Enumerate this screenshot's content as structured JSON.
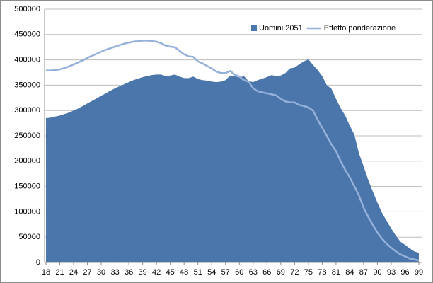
{
  "chart_data": {
    "type": "area-line",
    "x": [
      18,
      19,
      20,
      21,
      22,
      23,
      24,
      25,
      26,
      27,
      28,
      29,
      30,
      31,
      32,
      33,
      34,
      35,
      36,
      37,
      38,
      39,
      40,
      41,
      42,
      43,
      44,
      45,
      46,
      47,
      48,
      49,
      50,
      51,
      52,
      53,
      54,
      55,
      56,
      57,
      58,
      59,
      60,
      61,
      62,
      63,
      64,
      65,
      66,
      67,
      68,
      69,
      70,
      71,
      72,
      73,
      74,
      75,
      76,
      77,
      78,
      79,
      80,
      81,
      82,
      83,
      84,
      85,
      86,
      87,
      88,
      89,
      90,
      91,
      92,
      93,
      94,
      95,
      96,
      97,
      98,
      99
    ],
    "xlim": [
      18,
      99
    ],
    "xticks": [
      18,
      21,
      24,
      27,
      30,
      33,
      36,
      39,
      42,
      45,
      48,
      51,
      54,
      57,
      60,
      63,
      66,
      69,
      72,
      75,
      78,
      81,
      84,
      87,
      90,
      93,
      96,
      99
    ],
    "ylim": [
      0,
      500000
    ],
    "yticks": [
      0,
      50000,
      100000,
      150000,
      200000,
      250000,
      300000,
      350000,
      400000,
      450000,
      500000
    ],
    "grid": true,
    "legend": "top-right",
    "series": [
      {
        "name": "Uomini 2051",
        "kind": "area",
        "color": "#4a76ab",
        "values": [
          285000,
          286000,
          288000,
          290000,
          293000,
          296000,
          300000,
          304000,
          309000,
          314000,
          319000,
          324000,
          329000,
          334000,
          339000,
          344000,
          348000,
          352000,
          356000,
          360000,
          363000,
          366000,
          368000,
          370000,
          371000,
          371000,
          368000,
          369000,
          371000,
          367000,
          364000,
          364000,
          367000,
          362000,
          360000,
          359000,
          357000,
          356000,
          357000,
          360000,
          369000,
          368000,
          365000,
          368000,
          358000,
          356000,
          360000,
          363000,
          366000,
          370000,
          368000,
          369000,
          374000,
          383000,
          385000,
          391000,
          397000,
          401000,
          390000,
          380000,
          368000,
          350000,
          343000,
          323000,
          305000,
          290000,
          270000,
          252000,
          215000,
          190000,
          163000,
          140000,
          118000,
          98000,
          82000,
          67000,
          53000,
          41000,
          35000,
          28000,
          22000,
          19000
        ]
      },
      {
        "name": "Effetto ponderazione",
        "kind": "line",
        "color": "#95b0d9",
        "values": [
          379000,
          379000,
          380000,
          381000,
          384000,
          387000,
          391000,
          395000,
          399000,
          404000,
          408000,
          412000,
          416000,
          420000,
          423000,
          426000,
          429000,
          432000,
          434000,
          436000,
          437000,
          438000,
          438000,
          437000,
          436000,
          433000,
          428000,
          426000,
          425000,
          418000,
          411000,
          407000,
          406000,
          397000,
          393000,
          388000,
          383000,
          377000,
          374000,
          374000,
          378000,
          371000,
          367000,
          360000,
          357000,
          344000,
          338000,
          336000,
          334000,
          332000,
          330000,
          323000,
          318000,
          316000,
          316000,
          311000,
          309000,
          306000,
          300000,
          282000,
          266000,
          250000,
          233000,
          220000,
          200000,
          183000,
          168000,
          150000,
          132000,
          108000,
          90000,
          74000,
          59000,
          47000,
          37000,
          29000,
          22000,
          16000,
          12000,
          8000,
          6000,
          4000
        ]
      }
    ]
  }
}
